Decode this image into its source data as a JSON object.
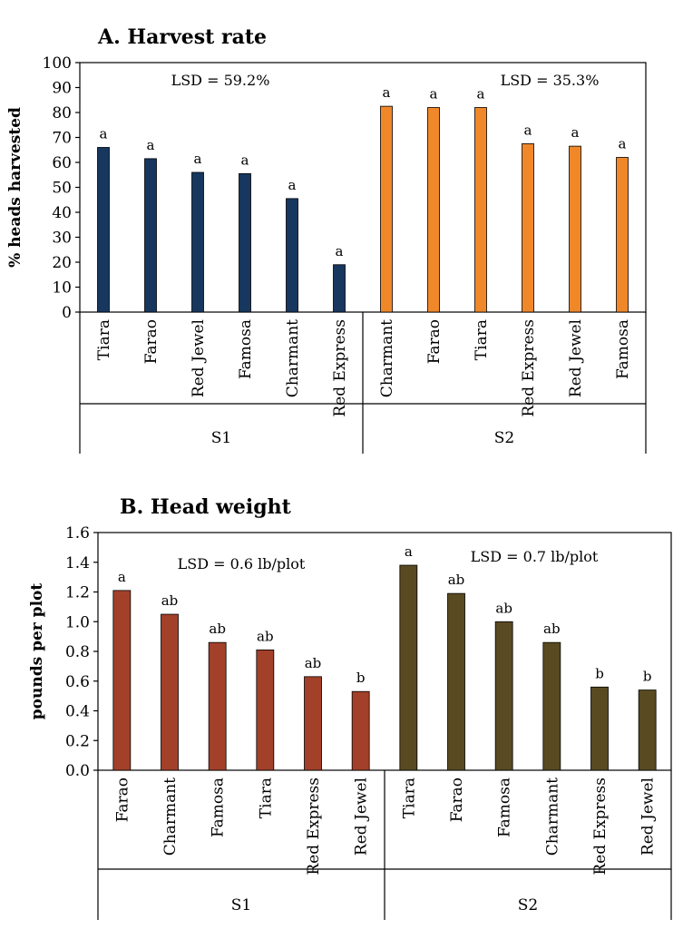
{
  "chart_data": [
    {
      "type": "bar",
      "title": "A. Harvest rate",
      "ylabel": "% heads harvested",
      "xlabel": "",
      "ylim": [
        0,
        100
      ],
      "yticks": [
        "0",
        "10",
        "20",
        "30",
        "40",
        "50",
        "60",
        "70",
        "80",
        "90",
        "100"
      ],
      "grid": false,
      "groups": [
        {
          "name": "S1",
          "lsd": "LSD = 59.2%",
          "color": "#17375e",
          "categories": [
            "Tiara",
            "Farao",
            "Red Jewel",
            "Famosa",
            "Charmant",
            "Red Express"
          ],
          "values": [
            66,
            61.5,
            56,
            55.5,
            45.5,
            19
          ],
          "letters": [
            "a",
            "a",
            "a",
            "a",
            "a",
            "a"
          ]
        },
        {
          "name": "S2",
          "lsd": "LSD = 35.3%",
          "color": "#f0882a",
          "categories": [
            "Charmant",
            "Farao",
            "Tiara",
            "Red Express",
            "Red Jewel",
            "Famosa"
          ],
          "values": [
            82.5,
            82,
            82,
            67.5,
            66.5,
            62
          ],
          "letters": [
            "a",
            "a",
            "a",
            "a",
            "a",
            "a"
          ]
        }
      ]
    },
    {
      "type": "bar",
      "title": "B. Head weight",
      "ylabel": "pounds per plot",
      "xlabel": "",
      "ylim": [
        0,
        1.6
      ],
      "yticks": [
        "0.0",
        "0.2",
        "0.4",
        "0.6",
        "0.8",
        "1.0",
        "1.2",
        "1.4",
        "1.6"
      ],
      "grid": false,
      "groups": [
        {
          "name": "S1",
          "lsd": "LSD = 0.6 lb/plot",
          "color": "#a3402a",
          "categories": [
            "Farao",
            "Charmant",
            "Famosa",
            "Tiara",
            "Red Express",
            "Red Jewel"
          ],
          "values": [
            1.21,
            1.05,
            0.86,
            0.81,
            0.63,
            0.53
          ],
          "letters": [
            "a",
            "ab",
            "ab",
            "ab",
            "ab",
            "b"
          ]
        },
        {
          "name": "S2",
          "lsd": "LSD = 0.7 lb/plot",
          "color": "#5a4a22",
          "categories": [
            "Tiara",
            "Farao",
            "Famosa",
            "Charmant",
            "Red Express",
            "Red Jewel"
          ],
          "values": [
            1.38,
            1.19,
            1.0,
            0.86,
            0.56,
            0.54
          ],
          "letters": [
            "a",
            "ab",
            "ab",
            "ab",
            "b",
            "b"
          ]
        }
      ]
    }
  ]
}
